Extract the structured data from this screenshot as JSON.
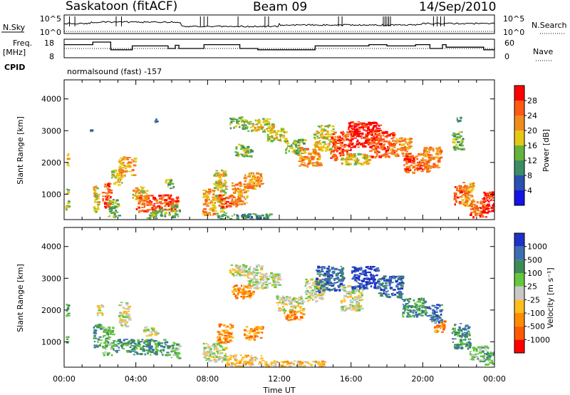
{
  "header": {
    "station": "Saskatoon (fitACF)",
    "beam": "Beam 09",
    "date": "14/Sep/2010",
    "program": "normalsound (fast) -157"
  },
  "chart_data": [
    {
      "type": "line",
      "panel": "noise",
      "left_label": "N.Sky",
      "right_label": "N.Search",
      "left_ticks": [
        "10^5",
        "10^0"
      ],
      "right_ticks": [
        "10^5",
        "10^0"
      ]
    },
    {
      "type": "line",
      "panel": "frequency",
      "left_label_lines": [
        "Freq.",
        "[MHz]"
      ],
      "left_ticks": [
        18,
        8
      ],
      "right_label": "Nave",
      "right_ticks": [
        60,
        0
      ],
      "extra_label": "CPID",
      "freq_steps": [
        [
          0.0,
          16.0
        ],
        [
          1.6,
          16.0
        ],
        [
          1.6,
          18.0
        ],
        [
          2.6,
          18.0
        ],
        [
          2.6,
          12.0
        ],
        [
          3.8,
          12.0
        ],
        [
          3.8,
          15.0
        ],
        [
          5.8,
          15.0
        ],
        [
          5.8,
          13.0
        ],
        [
          6.2,
          13.0
        ],
        [
          6.2,
          15.5
        ],
        [
          6.4,
          15.5
        ],
        [
          6.4,
          13.0
        ],
        [
          7.8,
          13.0
        ],
        [
          7.8,
          16.0
        ],
        [
          9.8,
          16.0
        ],
        [
          9.8,
          13.0
        ],
        [
          10.8,
          13.0
        ],
        [
          10.8,
          12.0
        ],
        [
          14.0,
          12.0
        ],
        [
          14.0,
          15.0
        ],
        [
          17.0,
          15.0
        ],
        [
          17.0,
          16.0
        ],
        [
          18.0,
          16.0
        ],
        [
          18.0,
          15.0
        ],
        [
          19.6,
          15.0
        ],
        [
          19.6,
          16.0
        ],
        [
          20.4,
          16.0
        ],
        [
          20.4,
          13.0
        ],
        [
          21.1,
          13.0
        ],
        [
          21.1,
          16.0
        ],
        [
          21.3,
          16.0
        ],
        [
          21.3,
          14.0
        ],
        [
          23.4,
          14.0
        ],
        [
          23.4,
          12.0
        ],
        [
          24.0,
          12.0
        ]
      ]
    },
    {
      "type": "heatmap",
      "panel": "power",
      "ylabel": "Slant Range [km]",
      "yticks": [
        1000,
        2000,
        3000,
        4000
      ],
      "ylim": [
        200,
        4600
      ],
      "xlim": [
        0,
        24
      ],
      "colorbar_label": "Power [dB]",
      "colorbar_ticks": [
        "4",
        "8",
        "12",
        "16",
        "20",
        "24",
        "28"
      ],
      "colors": [
        "#1414e6",
        "#2a50b4",
        "#3c8c64",
        "#64b43c",
        "#e6c814",
        "#f08c1e",
        "#ff5a14",
        "#ff0000"
      ],
      "regions": [
        {
          "x": [
            0.05,
            0.2
          ],
          "r": [
            1900,
            2300
          ],
          "l": 4
        },
        {
          "x": [
            0.05,
            0.2
          ],
          "r": [
            900,
            1200
          ],
          "l": 3
        },
        {
          "x": [
            0.05,
            0.2
          ],
          "r": [
            500,
            800
          ],
          "l": 3
        },
        {
          "x": [
            1.4,
            1.5
          ],
          "r": [
            2900,
            3100
          ],
          "l": 2
        },
        {
          "x": [
            1.6,
            1.9
          ],
          "r": [
            450,
            1300
          ],
          "l": 4
        },
        {
          "x": [
            2.1,
            2.6
          ],
          "r": [
            600,
            1400
          ],
          "l": 6
        },
        {
          "x": [
            2.4,
            3.0
          ],
          "r": [
            300,
            900
          ],
          "l": 3
        },
        {
          "x": [
            2.6,
            3.2
          ],
          "r": [
            1300,
            1800
          ],
          "l": 4
        },
        {
          "x": [
            3.0,
            3.9
          ],
          "r": [
            1600,
            2200
          ],
          "l": 5
        },
        {
          "x": [
            3.8,
            4.6
          ],
          "r": [
            850,
            1250
          ],
          "l": 4
        },
        {
          "x": [
            4.0,
            6.3
          ],
          "r": [
            450,
            1000
          ],
          "l": 6
        },
        {
          "x": [
            4.6,
            5.6
          ],
          "r": [
            250,
            550
          ],
          "l": 3
        },
        {
          "x": [
            5.6,
            6.1
          ],
          "r": [
            1200,
            1500
          ],
          "l": 3
        },
        {
          "x": [
            5.8,
            6.4
          ],
          "r": [
            300,
            700
          ],
          "l": 3
        },
        {
          "x": [
            5.0,
            5.3
          ],
          "r": [
            3300,
            3450
          ],
          "l": 1
        },
        {
          "x": [
            7.7,
            8.3
          ],
          "r": [
            350,
            1200
          ],
          "l": 5
        },
        {
          "x": [
            8.3,
            9.0
          ],
          "r": [
            400,
            1800
          ],
          "l": 4
        },
        {
          "x": [
            8.6,
            9.6
          ],
          "r": [
            600,
            1000
          ],
          "l": 6
        },
        {
          "x": [
            9.3,
            10.2
          ],
          "r": [
            700,
            1400
          ],
          "l": 5
        },
        {
          "x": [
            9.5,
            10.4
          ],
          "r": [
            2200,
            2600
          ],
          "l": 3
        },
        {
          "x": [
            10.0,
            11.0
          ],
          "r": [
            1200,
            1700
          ],
          "l": 5
        },
        {
          "x": [
            8.5,
            11.5
          ],
          "r": [
            230,
            400
          ],
          "l": 2
        },
        {
          "x": [
            9.2,
            10.2
          ],
          "r": [
            3100,
            3450
          ],
          "l": 3
        },
        {
          "x": [
            10.2,
            11.6
          ],
          "r": [
            3000,
            3400
          ],
          "l": 4
        },
        {
          "x": [
            11.3,
            12.3
          ],
          "r": [
            2700,
            3100
          ],
          "l": 4
        },
        {
          "x": [
            12.3,
            13.4
          ],
          "r": [
            2300,
            2750
          ],
          "l": 3
        },
        {
          "x": [
            13.0,
            14.3
          ],
          "r": [
            1900,
            2500
          ],
          "l": 5
        },
        {
          "x": [
            13.9,
            15.0
          ],
          "r": [
            2400,
            3200
          ],
          "l": 4
        },
        {
          "x": [
            14.8,
            16.0
          ],
          "r": [
            2100,
            3000
          ],
          "l": 6
        },
        {
          "x": [
            15.8,
            17.6
          ],
          "r": [
            2500,
            3300
          ],
          "l": 7
        },
        {
          "x": [
            17.0,
            18.4
          ],
          "r": [
            2200,
            3000
          ],
          "l": 6
        },
        {
          "x": [
            15.4,
            17.0
          ],
          "r": [
            1950,
            2300
          ],
          "l": 4
        },
        {
          "x": [
            18.2,
            19.3
          ],
          "r": [
            2200,
            2800
          ],
          "l": 5
        },
        {
          "x": [
            18.9,
            20.3
          ],
          "r": [
            1700,
            2300
          ],
          "l": 6
        },
        {
          "x": [
            20.0,
            21.0
          ],
          "r": [
            1800,
            2500
          ],
          "l": 5
        },
        {
          "x": [
            21.7,
            22.4
          ],
          "r": [
            700,
            1300
          ],
          "l": 6
        },
        {
          "x": [
            22.1,
            22.8
          ],
          "r": [
            600,
            1400
          ],
          "l": 5
        },
        {
          "x": [
            22.6,
            23.5
          ],
          "r": [
            300,
            800
          ],
          "l": 6
        },
        {
          "x": [
            23.2,
            24.0
          ],
          "r": [
            400,
            1100
          ],
          "l": 7
        },
        {
          "x": [
            21.6,
            22.2
          ],
          "r": [
            2400,
            3000
          ],
          "l": 3
        },
        {
          "x": [
            21.8,
            22.1
          ],
          "r": [
            3300,
            3450
          ],
          "l": 2
        }
      ]
    },
    {
      "type": "heatmap",
      "panel": "velocity",
      "ylabel": "Slant Range [km]",
      "yticks": [
        1000,
        2000,
        3000,
        4000
      ],
      "ylim": [
        200,
        4600
      ],
      "xlim": [
        0,
        24
      ],
      "xticks": [
        "00:00",
        "04:00",
        "08:00",
        "12:00",
        "16:00",
        "20:00",
        "00:00"
      ],
      "xlabel": "Time UT",
      "colorbar_label": "Velocity [m s⁻¹]",
      "colorbar_ticks": [
        "-1000",
        "-500",
        "-100",
        "-25",
        "25",
        "100",
        "500",
        "1000"
      ],
      "colors": [
        "#ff0000",
        "#ff5a00",
        "#ff8c00",
        "#ffbe1e",
        "#c8c8c8",
        "#64c83c",
        "#3c8c5a",
        "#3c6eb4",
        "#1e32c8"
      ],
      "regions": [
        {
          "x": [
            0.05,
            0.2
          ],
          "r": [
            1800,
            2300
          ],
          "l": 6
        },
        {
          "x": [
            0.05,
            0.2
          ],
          "r": [
            900,
            1200
          ],
          "l": 6
        },
        {
          "x": [
            1.6,
            2.0
          ],
          "r": [
            850,
            1600
          ],
          "l": 6
        },
        {
          "x": [
            2.1,
            2.7
          ],
          "r": [
            600,
            1500
          ],
          "l": 5
        },
        {
          "x": [
            2.7,
            3.8
          ],
          "r": [
            700,
            1100
          ],
          "l": 6
        },
        {
          "x": [
            3.0,
            3.6
          ],
          "r": [
            1500,
            2300
          ],
          "l": 4
        },
        {
          "x": [
            3.8,
            5.8
          ],
          "r": [
            600,
            1100
          ],
          "l": 6
        },
        {
          "x": [
            4.4,
            5.2
          ],
          "r": [
            1200,
            1500
          ],
          "l": 4
        },
        {
          "x": [
            5.8,
            6.4
          ],
          "r": [
            500,
            1000
          ],
          "l": 5
        },
        {
          "x": [
            7.7,
            9.0
          ],
          "r": [
            400,
            1000
          ],
          "l": 4
        },
        {
          "x": [
            8.5,
            9.3
          ],
          "r": [
            1000,
            1600
          ],
          "l": 2
        },
        {
          "x": [
            9.0,
            11.0
          ],
          "r": [
            250,
            600
          ],
          "l": 3
        },
        {
          "x": [
            10.0,
            11.0
          ],
          "r": [
            1100,
            1500
          ],
          "l": 2
        },
        {
          "x": [
            9.3,
            10.5
          ],
          "r": [
            2400,
            2800
          ],
          "l": 2
        },
        {
          "x": [
            11.0,
            14.5
          ],
          "r": [
            230,
            420
          ],
          "l": 3
        },
        {
          "x": [
            9.2,
            11.0
          ],
          "r": [
            3100,
            3450
          ],
          "l": 4
        },
        {
          "x": [
            10.2,
            12.0
          ],
          "r": [
            2700,
            3200
          ],
          "l": 4
        },
        {
          "x": [
            11.8,
            13.3
          ],
          "r": [
            2000,
            2500
          ],
          "l": 4
        },
        {
          "x": [
            12.2,
            13.3
          ],
          "r": [
            1700,
            2000
          ],
          "l": 2
        },
        {
          "x": [
            13.4,
            14.5
          ],
          "r": [
            2300,
            3000
          ],
          "l": 4
        },
        {
          "x": [
            14.0,
            15.5
          ],
          "r": [
            2600,
            3400
          ],
          "l": 7
        },
        {
          "x": [
            15.4,
            16.6
          ],
          "r": [
            2000,
            2800
          ],
          "l": 4
        },
        {
          "x": [
            16.0,
            17.5
          ],
          "r": [
            2700,
            3400
          ],
          "l": 8
        },
        {
          "x": [
            17.5,
            18.8
          ],
          "r": [
            2400,
            3100
          ],
          "l": 7
        },
        {
          "x": [
            18.8,
            20.2
          ],
          "r": [
            1800,
            2400
          ],
          "l": 6
        },
        {
          "x": [
            20.2,
            21.0
          ],
          "r": [
            1600,
            2200
          ],
          "l": 7
        },
        {
          "x": [
            21.6,
            22.6
          ],
          "r": [
            800,
            1600
          ],
          "l": 6
        },
        {
          "x": [
            22.6,
            23.6
          ],
          "r": [
            400,
            900
          ],
          "l": 5
        },
        {
          "x": [
            23.4,
            24.0
          ],
          "r": [
            300,
            700
          ],
          "l": 6
        },
        {
          "x": [
            20.6,
            21.2
          ],
          "r": [
            1300,
            1700
          ],
          "l": 2
        },
        {
          "x": [
            1.8,
            2.1
          ],
          "r": [
            1800,
            2200
          ],
          "l": 4
        }
      ]
    }
  ]
}
